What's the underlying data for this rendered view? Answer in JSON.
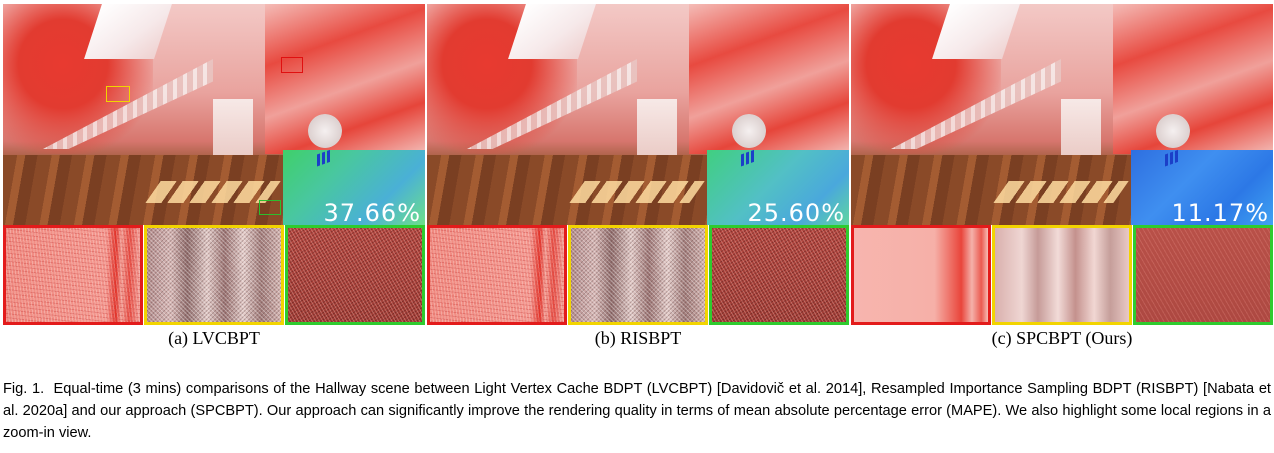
{
  "panels": [
    {
      "id": "a",
      "subcaption": "(a) LVCBPT",
      "mape": "37.66%",
      "errmap_color": "#49c7a0",
      "zoom_style": "noisy"
    },
    {
      "id": "b",
      "subcaption": "(b) RISBPT",
      "mape": "25.60%",
      "errmap_color": "#52c0c5",
      "zoom_style": "noisy"
    },
    {
      "id": "c",
      "subcaption": "(c) SPCBPT (Ours)",
      "mape": "11.17%",
      "errmap_color": "#3f8ff0",
      "zoom_style": "smooth"
    }
  ],
  "inset_colors": {
    "red": "#e31b1b",
    "yellow": "#f2d400",
    "green": "#2ecb2e"
  },
  "caption": {
    "label": "Fig. 1.",
    "text": "Equal-time (3 mins) comparisons of the Hallway scene between Light Vertex Cache BDPT (LVCBPT) [Davidovič et al. 2014], Resampled Importance Sampling BDPT (RISBPT) [Nabata et al. 2020a] and our approach (SPCBPT). Our approach can significantly improve the rendering quality in terms of mean absolute percentage error (MAPE). We also highlight some local regions in a zoom-in view."
  }
}
